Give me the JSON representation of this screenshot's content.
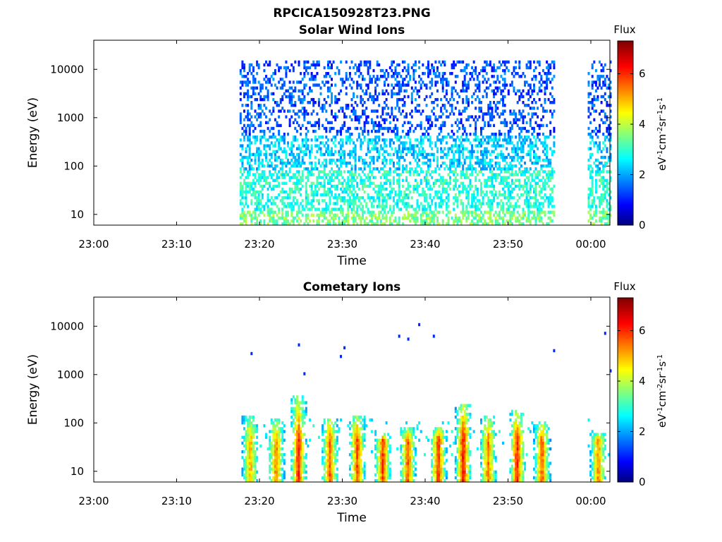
{
  "figure": {
    "filename": "RPCICA150928T23.PNG"
  },
  "chart_data": [
    {
      "type": "heatmap",
      "title": "Solar Wind Ions",
      "xlabel": "Time",
      "ylabel": "Energy (eV)",
      "y_scale": "log",
      "ylim": [
        6,
        40000
      ],
      "x_range_minutes": [
        0,
        62.3
      ],
      "x_ticks": [
        {
          "label": "23:00",
          "min": 0
        },
        {
          "label": "23:10",
          "min": 10
        },
        {
          "label": "23:20",
          "min": 20
        },
        {
          "label": "23:30",
          "min": 30
        },
        {
          "label": "23:40",
          "min": 40
        },
        {
          "label": "23:50",
          "min": 50
        },
        {
          "label": "00:00",
          "min": 60
        }
      ],
      "y_ticks": [
        {
          "label": "10",
          "value": 10
        },
        {
          "label": "100",
          "value": 100
        },
        {
          "label": "1000",
          "value": 1000
        },
        {
          "label": "10000",
          "value": 10000
        }
      ],
      "data_intervals_minutes": [
        [
          17.5,
          55.6
        ],
        [
          59.6,
          62.3
        ]
      ],
      "colorbar": {
        "label": "Flux",
        "unit": "eV-1cm-2sr-1s-1",
        "range": [
          0,
          7.3
        ],
        "ticks": [
          "0",
          "2",
          "4",
          "6"
        ],
        "colormap": "jet"
      },
      "description_bands": [
        {
          "e_min": 6,
          "e_max": 12,
          "flux": 3.6
        },
        {
          "e_min": 12,
          "e_max": 80,
          "flux": 3.0
        },
        {
          "e_min": 80,
          "e_max": 400,
          "flux": 2.4
        },
        {
          "e_min": 400,
          "e_max": 16000,
          "flux": 1.5
        }
      ]
    },
    {
      "type": "heatmap",
      "title": "Cometary Ions",
      "xlabel": "Time",
      "ylabel": "Energy (eV)",
      "y_scale": "log",
      "ylim": [
        6,
        40000
      ],
      "x_range_minutes": [
        0,
        62.3
      ],
      "x_ticks": [
        {
          "label": "23:00",
          "min": 0
        },
        {
          "label": "23:10",
          "min": 10
        },
        {
          "label": "23:20",
          "min": 20
        },
        {
          "label": "23:30",
          "min": 30
        },
        {
          "label": "23:40",
          "min": 40
        },
        {
          "label": "23:50",
          "min": 50
        },
        {
          "label": "00:00",
          "min": 60
        }
      ],
      "y_ticks": [
        {
          "label": "10",
          "value": 10
        },
        {
          "label": "100",
          "value": 100
        },
        {
          "label": "1000",
          "value": 1000
        },
        {
          "label": "10000",
          "value": 10000
        }
      ],
      "data_intervals_minutes": [
        [
          17.5,
          55.6
        ],
        [
          59.6,
          62.3
        ]
      ],
      "colorbar": {
        "label": "Flux",
        "unit": "eV-1cm-2sr-1s-1",
        "range": [
          0,
          7.3
        ],
        "ticks": [
          "0",
          "2",
          "4",
          "6"
        ],
        "colormap": "jet"
      },
      "bursts": [
        {
          "t": 18.8,
          "e_top": 150,
          "peak": 5.2
        },
        {
          "t": 21.9,
          "e_top": 120,
          "peak": 5.6
        },
        {
          "t": 24.6,
          "e_top": 350,
          "peak": 6.3
        },
        {
          "t": 28.4,
          "e_top": 130,
          "peak": 5.8
        },
        {
          "t": 31.7,
          "e_top": 150,
          "peak": 6.0
        },
        {
          "t": 34.8,
          "e_top": 60,
          "peak": 6.1
        },
        {
          "t": 37.8,
          "e_top": 80,
          "peak": 5.9
        },
        {
          "t": 41.5,
          "e_top": 80,
          "peak": 6.2
        },
        {
          "t": 44.5,
          "e_top": 250,
          "peak": 6.6
        },
        {
          "t": 47.5,
          "e_top": 150,
          "peak": 5.7
        },
        {
          "t": 51.0,
          "e_top": 180,
          "peak": 6.3
        },
        {
          "t": 54.0,
          "e_top": 110,
          "peak": 5.9
        },
        {
          "t": 60.8,
          "e_top": 60,
          "peak": 5.5
        }
      ]
    }
  ]
}
